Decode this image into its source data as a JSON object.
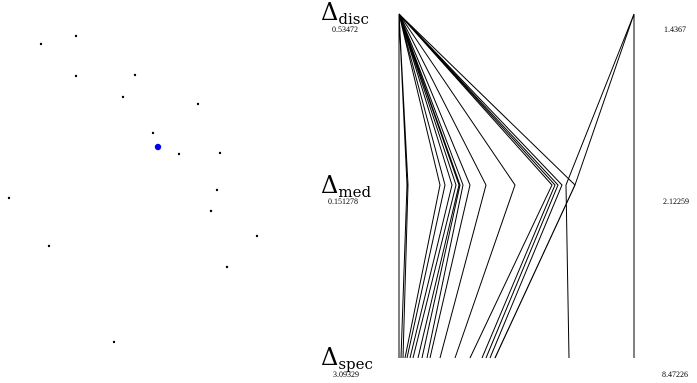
{
  "axes": [
    {
      "symbol": "Δ",
      "subscript": "disc",
      "left_value": "0.53472",
      "right_value": "1.4367"
    },
    {
      "symbol": "Δ",
      "subscript": "med",
      "left_value": "0.151278",
      "right_value": "2.12259"
    },
    {
      "symbol": "Δ",
      "subscript": "spec",
      "left_value": "3.09329",
      "right_value": "8.47226"
    }
  ],
  "colors": {
    "points": "#000000",
    "highlight": "#0000ee",
    "lines": "#000000"
  }
}
